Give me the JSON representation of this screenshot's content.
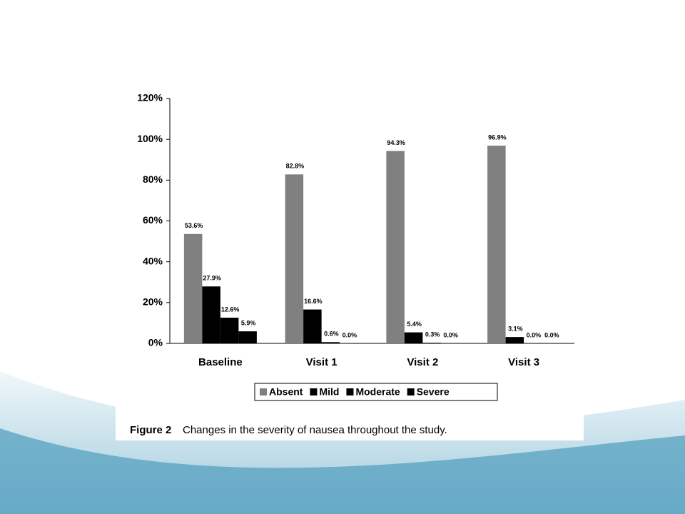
{
  "chart_data": {
    "type": "bar",
    "categories": [
      "Baseline",
      "Visit 1",
      "Visit 2",
      "Visit 3"
    ],
    "series": [
      {
        "name": "Absent",
        "color": "#808080",
        "values": [
          53.6,
          82.8,
          94.3,
          96.9
        ],
        "value_labels": [
          "53.6%",
          "82.8%",
          "94.3%",
          "96.9%"
        ]
      },
      {
        "name": "Mild",
        "color": "#000000",
        "values": [
          27.9,
          16.6,
          5.4,
          3.1
        ],
        "value_labels": [
          "27.9%",
          "16.6%",
          "5.4%",
          "3.1%"
        ]
      },
      {
        "name": "Moderate",
        "color": "#000000",
        "values": [
          12.6,
          0.6,
          0.3,
          0.0
        ],
        "value_labels": [
          "12.6%",
          "0.6%",
          "0.3%",
          "0.0%"
        ]
      },
      {
        "name": "Severe",
        "color": "#000000",
        "values": [
          5.9,
          0.0,
          0.0,
          0.0
        ],
        "value_labels": [
          "5.9%",
          "0.0%",
          "0.0%",
          "0.0%"
        ]
      }
    ],
    "ylim": [
      0,
      120
    ],
    "yticks": [
      {
        "value": 0,
        "label": "0%"
      },
      {
        "value": 20,
        "label": "20%"
      },
      {
        "value": 40,
        "label": "40%"
      },
      {
        "value": 60,
        "label": "60%"
      },
      {
        "value": 80,
        "label": "80%"
      },
      {
        "value": 100,
        "label": "100%"
      },
      {
        "value": 120,
        "label": "120%"
      }
    ],
    "grid": false,
    "legend": "bottom",
    "caption_label": "Figure 2",
    "caption": "Changes in the severity of nausea throughout the study."
  }
}
